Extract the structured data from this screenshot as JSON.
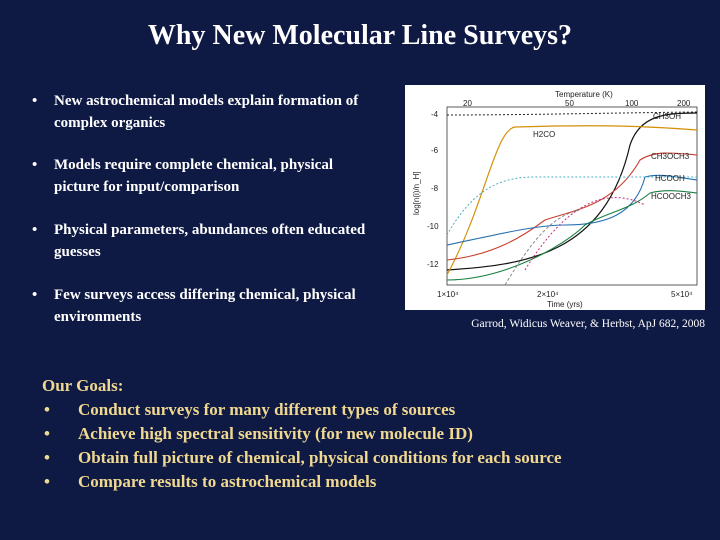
{
  "slide": {
    "title": "Why New Molecular Line Surveys?",
    "bullets": [
      "New astrochemical models explain formation of complex organics",
      "Models require complete chemical, physical picture for input/comparison",
      "Physical parameters, abundances often educated guesses",
      "Few surveys access differing chemical, physical environments"
    ],
    "bullet_symbol": "•",
    "caption": "Garrod, Widicus Weaver, & Herbst, ApJ 682, 2008",
    "goals": {
      "title": "Our Goals:",
      "items": [
        "Conduct surveys for many different types of sources",
        "Achieve high spectral sensitivity (for new molecule ID)",
        "Obtain full picture of chemical, physical conditions for each source",
        "Compare results to astrochemical models"
      ]
    },
    "colors": {
      "background": "#0f1a44",
      "goals_text": "#f0d890"
    }
  },
  "figure": {
    "top_axis_label": "Temperature (K)",
    "top_ticks": [
      "20",
      "50",
      "100",
      "200"
    ],
    "y_label": "log[n(i)/n_H]",
    "y_ticks": [
      "-4",
      "-6",
      "-8",
      "-10",
      "-12"
    ],
    "x_label": "Time (yrs)",
    "x_ticks": [
      "1×10⁴",
      "2×10⁴",
      "5×10⁴"
    ],
    "species": [
      "CH3OH",
      "H2CO",
      "CH3OCH3",
      "HCOOH",
      "HCOOCH3"
    ]
  }
}
